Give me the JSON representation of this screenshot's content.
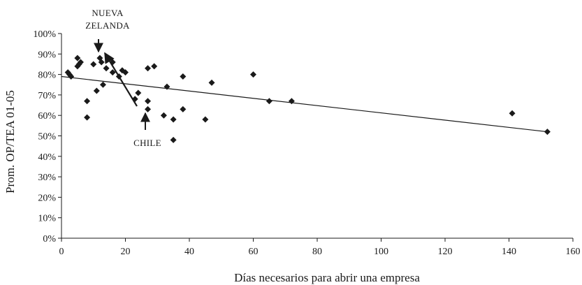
{
  "chart_data": {
    "type": "scatter",
    "title": "",
    "xlabel": "Días necesarios para abrir una empresa",
    "ylabel": "Prom. OP/TEA 01-05",
    "xlim": [
      0,
      160
    ],
    "ylim": [
      0,
      100
    ],
    "x_ticks": [
      0,
      20,
      40,
      60,
      80,
      100,
      120,
      140,
      160
    ],
    "y_ticks": [
      0,
      10,
      20,
      30,
      40,
      50,
      60,
      70,
      80,
      90,
      100
    ],
    "y_tick_labels": [
      "0%",
      "10%",
      "20%",
      "30%",
      "40%",
      "50%",
      "60%",
      "70%",
      "80%",
      "90%",
      "100%"
    ],
    "grid": false,
    "legend": "none",
    "marker": "diamond",
    "marker_color": "#1a1a1a",
    "points": [
      {
        "x": 2,
        "y": 81
      },
      {
        "x": 2.5,
        "y": 80
      },
      {
        "x": 3,
        "y": 79
      },
      {
        "x": 5,
        "y": 88
      },
      {
        "x": 5,
        "y": 84
      },
      {
        "x": 5.5,
        "y": 85
      },
      {
        "x": 6,
        "y": 86
      },
      {
        "x": 8,
        "y": 67
      },
      {
        "x": 8,
        "y": 59
      },
      {
        "x": 10,
        "y": 85
      },
      {
        "x": 11,
        "y": 72
      },
      {
        "x": 12,
        "y": 88
      },
      {
        "x": 12.5,
        "y": 86
      },
      {
        "x": 13,
        "y": 75
      },
      {
        "x": 14,
        "y": 83
      },
      {
        "x": 16,
        "y": 86
      },
      {
        "x": 16,
        "y": 81
      },
      {
        "x": 18,
        "y": 79
      },
      {
        "x": 19,
        "y": 82
      },
      {
        "x": 20,
        "y": 81
      },
      {
        "x": 23,
        "y": 68
      },
      {
        "x": 24,
        "y": 71
      },
      {
        "x": 27,
        "y": 83
      },
      {
        "x": 27,
        "y": 67
      },
      {
        "x": 27,
        "y": 63
      },
      {
        "x": 29,
        "y": 84
      },
      {
        "x": 32,
        "y": 60
      },
      {
        "x": 33,
        "y": 74
      },
      {
        "x": 35,
        "y": 58
      },
      {
        "x": 35,
        "y": 48
      },
      {
        "x": 38,
        "y": 79
      },
      {
        "x": 38,
        "y": 63
      },
      {
        "x": 45,
        "y": 58
      },
      {
        "x": 47,
        "y": 76
      },
      {
        "x": 60,
        "y": 80
      },
      {
        "x": 65,
        "y": 67
      },
      {
        "x": 72,
        "y": 67
      },
      {
        "x": 141,
        "y": 61
      },
      {
        "x": 152,
        "y": 52
      }
    ],
    "trendline": {
      "x": [
        0,
        152
      ],
      "y": [
        79,
        52
      ]
    },
    "annotations": [
      {
        "label": "NUEVA",
        "label2": "ZELANDA",
        "target_x": 12,
        "target_y": 88
      },
      {
        "label": "CHILE",
        "target_x": 27,
        "target_y": 59
      }
    ]
  }
}
